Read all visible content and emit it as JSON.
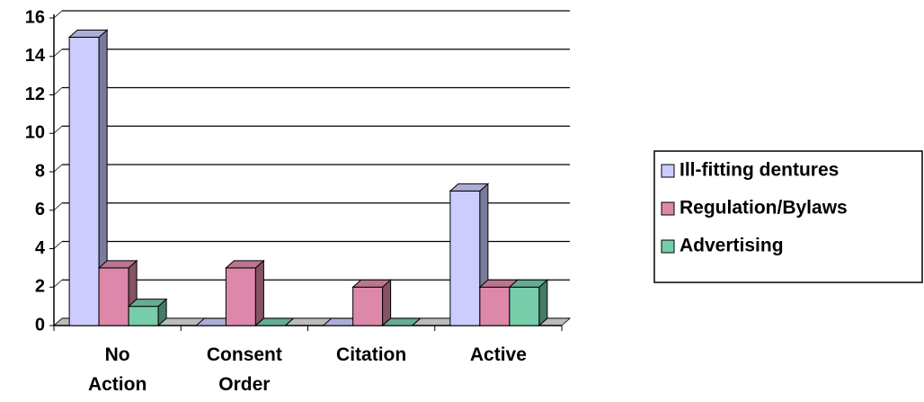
{
  "chart_data": {
    "type": "bar3d",
    "categories": [
      "No Action",
      "Consent Order",
      "Citation",
      "Active"
    ],
    "series": [
      {
        "name": "Ill-fitting dentures",
        "color": "#ccccff",
        "values": [
          15,
          0,
          0,
          7
        ]
      },
      {
        "name": "Regulation/Bylaws",
        "color": "#dd88aa",
        "values": [
          3,
          3,
          2,
          2
        ]
      },
      {
        "name": "Advertising",
        "color": "#77ccaa",
        "values": [
          1,
          0,
          0,
          2
        ]
      }
    ],
    "ylim": [
      0,
      16
    ],
    "yticks": [
      0,
      2,
      4,
      6,
      8,
      10,
      12,
      14,
      16
    ],
    "grid": true,
    "legend": "right"
  }
}
